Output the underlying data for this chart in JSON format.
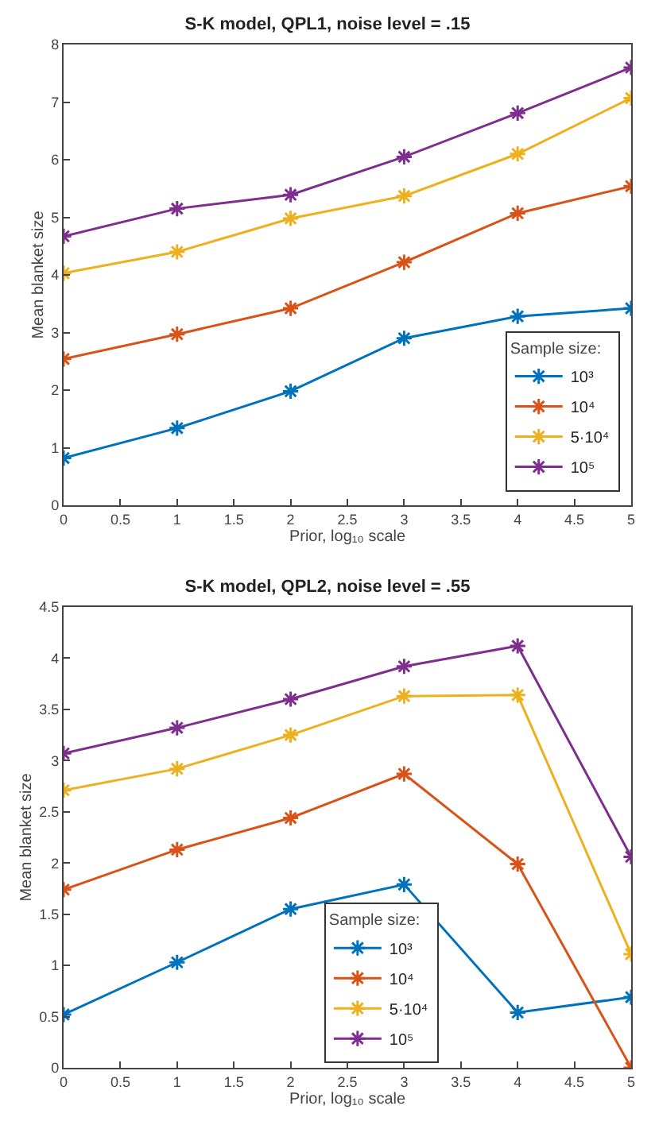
{
  "chart_data": [
    {
      "type": "line",
      "title": "S-K model, QPL1, noise level = .15",
      "xlabel": "Prior, log₁₀ scale",
      "ylabel": "Mean blanket size",
      "legend_title": "Sample size:",
      "x": [
        0,
        1,
        2,
        3,
        4,
        5
      ],
      "series": [
        {
          "name": "10³",
          "color": "#0072bd",
          "values": [
            0.82,
            1.34,
            1.98,
            2.9,
            3.28,
            3.42
          ]
        },
        {
          "name": "10⁴",
          "color": "#d95319",
          "values": [
            2.54,
            2.97,
            3.42,
            4.22,
            5.07,
            5.54
          ]
        },
        {
          "name": "5·10⁴",
          "color": "#edb120",
          "values": [
            4.03,
            4.4,
            4.98,
            5.37,
            6.1,
            7.07
          ]
        },
        {
          "name": "10⁵",
          "color": "#7e2f8e",
          "values": [
            4.67,
            5.15,
            5.39,
            6.05,
            6.81,
            7.6
          ]
        }
      ],
      "xlim": [
        0,
        5
      ],
      "xticks": [
        0,
        0.5,
        1,
        1.5,
        2,
        2.5,
        3,
        3.5,
        4,
        4.5,
        5
      ],
      "ylim": [
        0,
        8
      ],
      "yticks": [
        0,
        1,
        2,
        3,
        4,
        5,
        6,
        7,
        8
      ],
      "grid": false,
      "legend": "bottom right",
      "marker": "cross",
      "line_style": "solid"
    },
    {
      "type": "line",
      "title": "S-K model, QPL2, noise level = .55",
      "xlabel": "Prior, log₁₀ scale",
      "ylabel": "Mean blanket size",
      "legend_title": "Sample size:",
      "x": [
        0,
        1,
        2,
        3,
        4,
        5
      ],
      "series": [
        {
          "name": "10³",
          "color": "#0072bd",
          "values": [
            0.52,
            1.03,
            1.55,
            1.79,
            0.54,
            0.69
          ]
        },
        {
          "name": "10⁴",
          "color": "#d95319",
          "values": [
            1.74,
            2.13,
            2.44,
            2.87,
            1.99,
            0
          ]
        },
        {
          "name": "5·10⁴",
          "color": "#edb120",
          "values": [
            2.71,
            2.92,
            3.25,
            3.63,
            3.64,
            1.11
          ]
        },
        {
          "name": "10⁵",
          "color": "#7e2f8e",
          "values": [
            3.07,
            3.32,
            3.6,
            3.92,
            4.12,
            2.06
          ]
        }
      ],
      "xlim": [
        0,
        5
      ],
      "xticks": [
        0,
        0.5,
        1,
        1.5,
        2,
        2.5,
        3,
        3.5,
        4,
        4.5,
        5
      ],
      "ylim": [
        0,
        4.5
      ],
      "yticks": [
        0,
        0.5,
        1,
        1.5,
        2,
        2.5,
        3,
        3.5,
        4,
        4.5
      ],
      "grid": false,
      "legend": "bottom",
      "marker": "cross",
      "line_style": "solid"
    }
  ]
}
